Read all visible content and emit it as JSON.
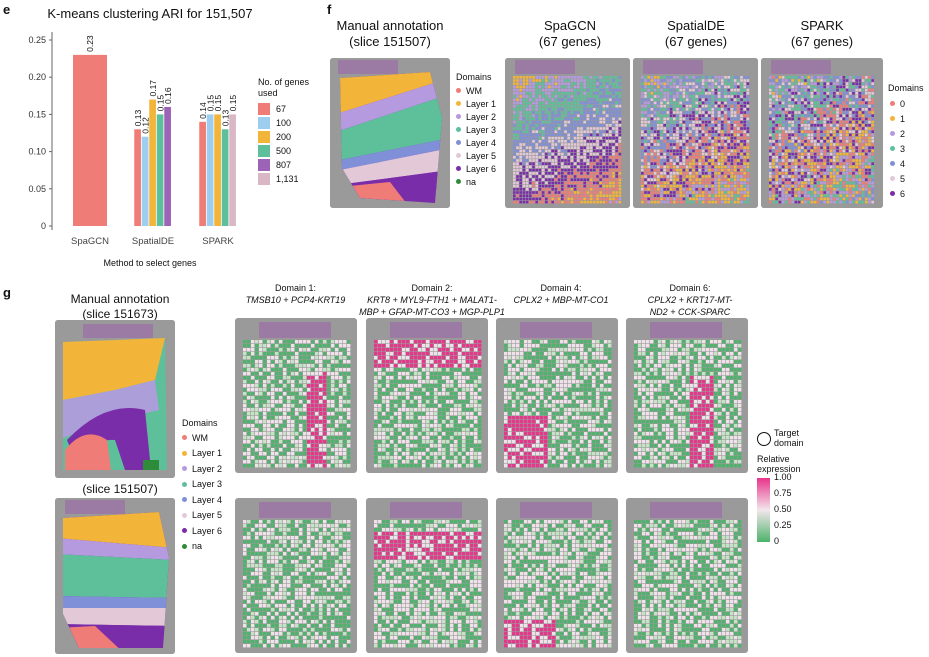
{
  "panel_e": {
    "label": "e",
    "title": "K-means clustering ARI for 151,507",
    "legend_title_line1": "No. of genes",
    "legend_title_line2": "used",
    "xlabel": "Method to select genes"
  },
  "chart_data": {
    "type": "bar",
    "title": "K-means clustering ARI for 151,507",
    "xlabel": "Method to select genes",
    "ylabel": "",
    "ylim": [
      0,
      0.25
    ],
    "yticks": [
      0,
      0.05,
      0.1,
      0.15,
      0.2,
      0.25
    ],
    "ytick_labels": [
      "0",
      "0.05",
      "0.10",
      "0.15",
      "0.20",
      "0.25"
    ],
    "groups": [
      {
        "name": "SpaGCN",
        "bars": [
          {
            "genes": "67",
            "value": 0.23,
            "label": "0.23"
          }
        ]
      },
      {
        "name": "SpatialDE",
        "bars": [
          {
            "genes": "67",
            "value": 0.13,
            "label": "0.13"
          },
          {
            "genes": "100",
            "value": 0.12,
            "label": "0.12"
          },
          {
            "genes": "200",
            "value": 0.17,
            "label": "0.17"
          },
          {
            "genes": "500",
            "value": 0.15,
            "label": "0.15"
          },
          {
            "genes": "807",
            "value": 0.16,
            "label": "0.16"
          }
        ]
      },
      {
        "name": "SPARK",
        "bars": [
          {
            "genes": "67",
            "value": 0.14,
            "label": "0.14"
          },
          {
            "genes": "100",
            "value": 0.15,
            "label": "0.15"
          },
          {
            "genes": "200",
            "value": 0.15,
            "label": "0.15"
          },
          {
            "genes": "500",
            "value": 0.13,
            "label": "0.13"
          },
          {
            "genes": "1,131",
            "value": 0.15,
            "label": "0.15"
          }
        ]
      }
    ],
    "legend": [
      {
        "label": "67",
        "color": "#F07C78"
      },
      {
        "label": "100",
        "color": "#9DCDEF"
      },
      {
        "label": "200",
        "color": "#F3B43A"
      },
      {
        "label": "500",
        "color": "#5EC09B"
      },
      {
        "label": "807",
        "color": "#9C63B7"
      },
      {
        "label": "1,131",
        "color": "#D9B7C4"
      }
    ]
  },
  "panel_f": {
    "label": "f",
    "titles": [
      {
        "l1": "Manual annotation",
        "l2": "(slice 151507)"
      },
      {
        "l1": "SpaGCN",
        "l2": "(67 genes)"
      },
      {
        "l1": "SpatialDE",
        "l2": "(67 genes)"
      },
      {
        "l1": "SPARK",
        "l2": "(67 genes)"
      }
    ],
    "domains_title": "Domains",
    "domains": [
      {
        "label": "WM",
        "color": "#F07C78"
      },
      {
        "label": "Layer 1",
        "color": "#F3B43A"
      },
      {
        "label": "Layer 2",
        "color": "#B59AE0"
      },
      {
        "label": "Layer 3",
        "color": "#5EC09B"
      },
      {
        "label": "Layer 4",
        "color": "#7F8FD8"
      },
      {
        "label": "Layer 5",
        "color": "#E3C9D8"
      },
      {
        "label": "Layer 6",
        "color": "#7A2DA8"
      },
      {
        "label": "na",
        "color": "#2E8B3A"
      }
    ],
    "cluster_title": "Domains",
    "clusters": [
      {
        "label": "0",
        "color": "#F07C78"
      },
      {
        "label": "1",
        "color": "#F3B43A"
      },
      {
        "label": "2",
        "color": "#B59AE0"
      },
      {
        "label": "3",
        "color": "#5EC09B"
      },
      {
        "label": "4",
        "color": "#7F8FD8"
      },
      {
        "label": "5",
        "color": "#E3C9D8"
      },
      {
        "label": "6",
        "color": "#7A2DA8"
      }
    ]
  },
  "panel_g": {
    "label": "g",
    "manual_title_l1": "Manual annotation",
    "manual_title_l2": "(slice 151673)",
    "slice2_title": "(slice 151507)",
    "domain_titles": [
      {
        "l1": "Domain 1:",
        "l2": "TMSB10 + PCP4-KRT19",
        "l3": ""
      },
      {
        "l1": "Domain 2:",
        "l2": "KRT8 + MYL9-FTH1 + MALAT1-",
        "l3": "MBP + GFAP-MT-CO3 + MGP-PLP1"
      },
      {
        "l1": "Domain 4:",
        "l2": "CPLX2 + MBP-MT-CO1",
        "l3": ""
      },
      {
        "l1": "Domain 6:",
        "l2": "CPLX2 + KRT17-MT-",
        "l3": "ND2 + CCK-SPARC"
      }
    ],
    "target_l1": "Target",
    "target_l2": "domain",
    "rel_l1": "Relative",
    "rel_l2": "expression",
    "colorbar_ticks": [
      "1.00",
      "0.75",
      "0.50",
      "0.25",
      "0"
    ],
    "colorbar_colors": {
      "high": "#E8338A",
      "mid": "#F3E6EC",
      "low": "#4DB36B"
    }
  }
}
